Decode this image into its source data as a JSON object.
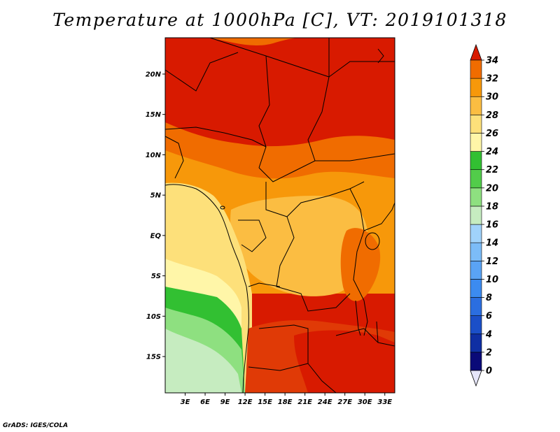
{
  "title": "Temperature at 1000hPa [C], VT: 2019101318",
  "credit": "GrADS: IGES/COLA",
  "map": {
    "projection": "latlon",
    "lon_range": [
      0,
      34.5
    ],
    "lat_range": [
      -19.5,
      24.5
    ],
    "lat_ticks": [
      {
        "value": 20,
        "label": "20N"
      },
      {
        "value": 15,
        "label": "15N"
      },
      {
        "value": 10,
        "label": "10N"
      },
      {
        "value": 5,
        "label": "5N"
      },
      {
        "value": 0,
        "label": "EQ"
      },
      {
        "value": -5,
        "label": "5S"
      },
      {
        "value": -10,
        "label": "10S"
      },
      {
        "value": -15,
        "label": "15S"
      }
    ],
    "lon_ticks": [
      {
        "value": 3,
        "label": "3E"
      },
      {
        "value": 6,
        "label": "6E"
      },
      {
        "value": 9,
        "label": "9E"
      },
      {
        "value": 12,
        "label": "12E"
      },
      {
        "value": 15,
        "label": "15E"
      },
      {
        "value": 18,
        "label": "18E"
      },
      {
        "value": 21,
        "label": "21E"
      },
      {
        "value": 24,
        "label": "24E"
      },
      {
        "value": 27,
        "label": "27E"
      },
      {
        "value": 30,
        "label": "30E"
      },
      {
        "value": 33,
        "label": "33E"
      }
    ]
  },
  "colorbar": {
    "levels": [
      "0",
      "2",
      "4",
      "6",
      "8",
      "10",
      "12",
      "14",
      "16",
      "18",
      "20",
      "22",
      "24",
      "26",
      "28",
      "30",
      "32",
      "34"
    ],
    "colors": [
      "#0a0a78",
      "#0f2fa3",
      "#1b4fc8",
      "#2b6ee0",
      "#3c8bf0",
      "#5aa3f5",
      "#7cbcf8",
      "#a0d2fb",
      "#c6ecc0",
      "#8ee080",
      "#52cc4a",
      "#32c032",
      "#fff6a8",
      "#fde07a",
      "#fbbd42",
      "#f7980a",
      "#f06c00",
      "#e03a06",
      "#d81a00"
    ],
    "under_color": "#e6e6fa"
  }
}
